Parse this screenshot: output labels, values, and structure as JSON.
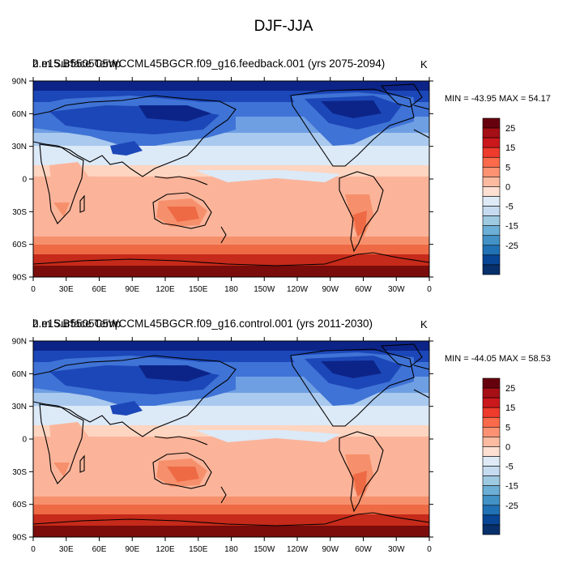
{
  "figure": {
    "title": "DJF-JJA"
  },
  "panels": [
    {
      "title_overlap_a": "b.e15.B5505C5WCCML45BGCR.f09_g16.feedback.001 (yrs 2075-2094)",
      "title_overlap_b": "2 m Surface Temp",
      "units": "K",
      "min_label": "MIN = -43.95",
      "max_label": "MAX =  54.17"
    },
    {
      "title_overlap_a": "b.e15.B5505C5WCCML45BGCR.f09_g16.control.001 (yrs 2011-2030)",
      "title_overlap_b": "2 m Surface Temp",
      "units": "K",
      "min_label": "MIN = -44.05",
      "max_label": "MAX =  58.53"
    }
  ],
  "axes": {
    "lon_ticks": [
      "0",
      "30E",
      "60E",
      "90E",
      "120E",
      "150E",
      "180",
      "150W",
      "120W",
      "90W",
      "60W",
      "30W",
      "0"
    ],
    "lat_ticks": [
      "90N",
      "60N",
      "30N",
      "0",
      "30S",
      "60S",
      "90S"
    ]
  },
  "colorbar": {
    "labels": [
      "25",
      "15",
      "5",
      "0",
      "-5",
      "-15",
      "-25"
    ],
    "colors": [
      "#67000d",
      "#a50f15",
      "#cb181d",
      "#ef3b2c",
      "#fb6a4a",
      "#fc9272",
      "#fcbba1",
      "#fee0d2",
      "#deebf7",
      "#c6dbef",
      "#9ecae1",
      "#6baed6",
      "#4292c6",
      "#2171b5",
      "#084594",
      "#08306b"
    ]
  },
  "colors": {
    "deep_red": "#7a0c0c",
    "red": "#c62a1a",
    "orange": "#ee6a45",
    "salmon": "#fbb49a",
    "peach": "#fdd5c0",
    "pale_blue": "#dce9f7",
    "light_blue": "#a9c9ee",
    "mid_blue": "#6f9fe3",
    "blue": "#3f73d6",
    "dark_blue": "#1c47b8",
    "navy": "#0c2488"
  }
}
